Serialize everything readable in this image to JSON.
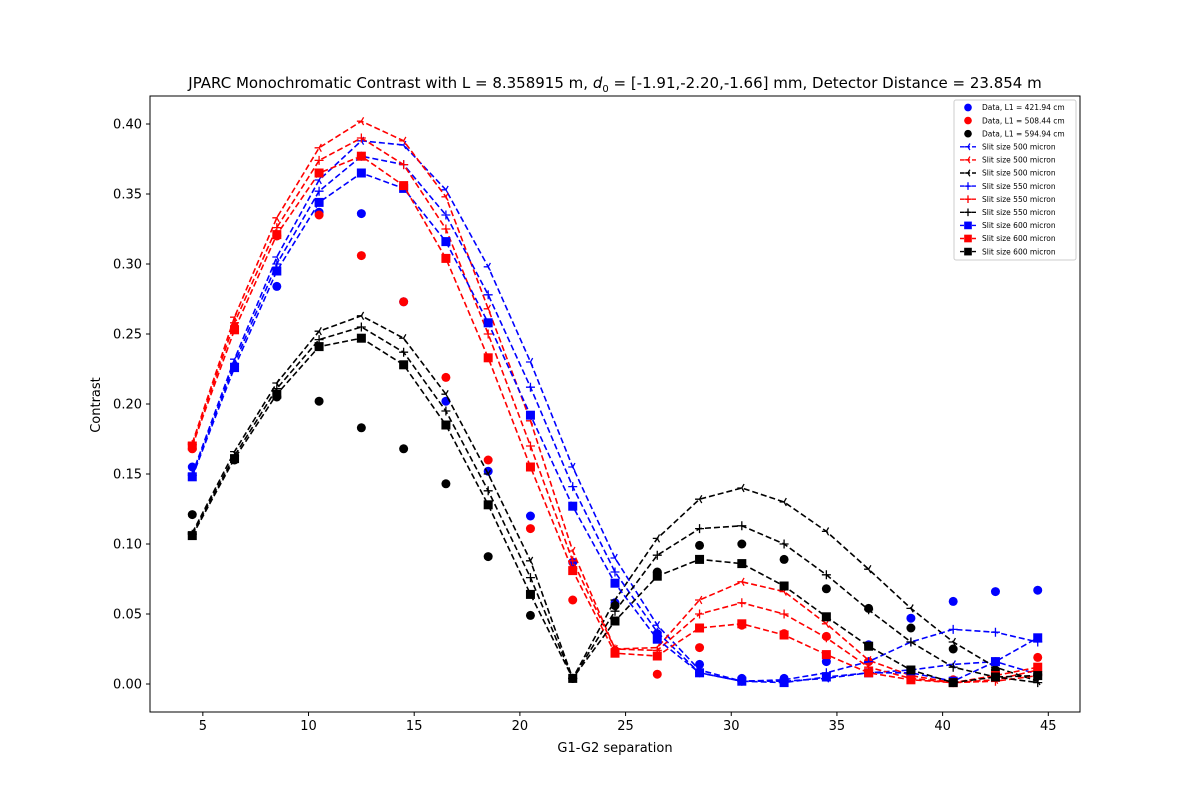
{
  "chart_data": {
    "type": "line",
    "title_prefix": "JPARC Monochromatic Contrast with L = 8.358915 m, ",
    "title_sym": "d",
    "title_sub": "0",
    "title_suffix": " = [-1.91,-2.20,-1.66] mm, Detector Distance = 23.854 m",
    "xlabel": "G1-G2 separation",
    "ylabel": "Contrast",
    "xlim": [
      2.5,
      46.5
    ],
    "ylim": [
      -0.02,
      0.42
    ],
    "xticks": [
      5,
      10,
      15,
      20,
      25,
      30,
      35,
      40,
      45
    ],
    "xtick_labels": [
      "5",
      "10",
      "15",
      "20",
      "25",
      "30",
      "35",
      "40",
      "45"
    ],
    "yticks": [
      0.0,
      0.05,
      0.1,
      0.15,
      0.2,
      0.25,
      0.3,
      0.35,
      0.4
    ],
    "ytick_labels": [
      "0.00",
      "0.05",
      "0.10",
      "0.15",
      "0.20",
      "0.25",
      "0.30",
      "0.35",
      "0.40"
    ],
    "grid": false,
    "legend_position": "top-right",
    "x": [
      4.5,
      6.5,
      8.5,
      10.5,
      12.5,
      14.5,
      16.5,
      18.5,
      20.5,
      22.5,
      24.5,
      26.5,
      28.5,
      30.5,
      32.5,
      34.5,
      36.5,
      38.5,
      40.5,
      42.5,
      44.5
    ],
    "series": [
      {
        "name": "Data, L1 = 421.94 cm",
        "color": "#0000ff",
        "marker": "circle",
        "linestyle": "none",
        "values": [
          0.155,
          0.227,
          0.284,
          0.337,
          0.336,
          0.273,
          0.202,
          0.152,
          0.12,
          0.087,
          0.058,
          0.036,
          0.014,
          0.004,
          0.004,
          0.016,
          0.028,
          0.047,
          0.059,
          0.066,
          0.067
        ]
      },
      {
        "name": "Data, L1 = 508.44 cm",
        "color": "#ff0000",
        "marker": "circle",
        "linestyle": "none",
        "values": [
          0.168,
          0.255,
          0.32,
          0.335,
          0.306,
          0.273,
          0.219,
          0.16,
          0.111,
          0.06,
          0.024,
          0.007,
          0.026,
          0.042,
          0.036,
          0.034,
          0.016,
          0.004,
          0.003,
          0.016,
          0.019
        ]
      },
      {
        "name": "Data, L1 = 594.94 cm",
        "color": "#000000",
        "marker": "circle",
        "linestyle": "none",
        "values": [
          0.121,
          0.16,
          0.205,
          0.202,
          0.183,
          0.168,
          0.143,
          0.091,
          0.049,
          0.004,
          0.056,
          0.08,
          0.099,
          0.1,
          0.089,
          0.068,
          0.054,
          0.04,
          0.025,
          0.01,
          0.007
        ]
      },
      {
        "name": "Slit size 500 micron",
        "color": "#0000ff",
        "marker": "tri_left",
        "linestyle": "dashed",
        "values": [
          0.15,
          0.232,
          0.305,
          0.36,
          0.388,
          0.385,
          0.353,
          0.298,
          0.23,
          0.155,
          0.09,
          0.042,
          0.01,
          0.002,
          0.002,
          0.004,
          0.008,
          0.01,
          0.014,
          0.016,
          0.007
        ]
      },
      {
        "name": "Slit size 500 micron",
        "color": "#ff0000",
        "marker": "tri_left",
        "linestyle": "dashed",
        "values": [
          0.172,
          0.262,
          0.333,
          0.383,
          0.402,
          0.388,
          0.348,
          0.268,
          0.188,
          0.095,
          0.025,
          0.026,
          0.06,
          0.073,
          0.066,
          0.043,
          0.017,
          0.006,
          0.001,
          0.003,
          0.01
        ]
      },
      {
        "name": "Slit size 500 micron",
        "color": "#000000",
        "marker": "tri_left",
        "linestyle": "dashed",
        "values": [
          0.108,
          0.166,
          0.215,
          0.252,
          0.263,
          0.247,
          0.207,
          0.15,
          0.088,
          0.004,
          0.06,
          0.104,
          0.132,
          0.14,
          0.13,
          0.109,
          0.082,
          0.054,
          0.03,
          0.012,
          0.002
        ]
      },
      {
        "name": "Slit size 550 micron",
        "color": "#0000ff",
        "marker": "plus",
        "linestyle": "dashed",
        "values": [
          0.149,
          0.229,
          0.3,
          0.352,
          0.377,
          0.371,
          0.335,
          0.278,
          0.212,
          0.141,
          0.08,
          0.037,
          0.008,
          0.002,
          0.003,
          0.008,
          0.016,
          0.03,
          0.039,
          0.037,
          0.03
        ]
      },
      {
        "name": "Slit size 550 micron",
        "color": "#ff0000",
        "marker": "plus",
        "linestyle": "dashed",
        "values": [
          0.171,
          0.258,
          0.326,
          0.374,
          0.39,
          0.371,
          0.325,
          0.25,
          0.17,
          0.088,
          0.025,
          0.024,
          0.05,
          0.058,
          0.05,
          0.033,
          0.012,
          0.004,
          0.001,
          0.002,
          0.006
        ]
      },
      {
        "name": "Slit size 550 micron",
        "color": "#000000",
        "marker": "plus",
        "linestyle": "dashed",
        "values": [
          0.107,
          0.163,
          0.211,
          0.246,
          0.255,
          0.237,
          0.195,
          0.138,
          0.076,
          0.004,
          0.052,
          0.092,
          0.111,
          0.113,
          0.1,
          0.078,
          0.053,
          0.03,
          0.012,
          0.005,
          0.001
        ]
      },
      {
        "name": "Slit size 600 micron",
        "color": "#0000ff",
        "marker": "square",
        "linestyle": "dashed",
        "values": [
          0.148,
          0.226,
          0.295,
          0.344,
          0.365,
          0.354,
          0.316,
          0.258,
          0.192,
          0.127,
          0.072,
          0.032,
          0.008,
          0.002,
          0.001,
          0.005,
          0.008,
          0.008,
          0.002,
          0.016,
          0.033
        ]
      },
      {
        "name": "Slit size 600 micron",
        "color": "#ff0000",
        "marker": "square",
        "linestyle": "dashed",
        "values": [
          0.17,
          0.253,
          0.321,
          0.365,
          0.377,
          0.356,
          0.304,
          0.233,
          0.155,
          0.081,
          0.022,
          0.02,
          0.04,
          0.043,
          0.035,
          0.021,
          0.008,
          0.003,
          0.001,
          0.006,
          0.012
        ]
      },
      {
        "name": "Slit size 600 micron",
        "color": "#000000",
        "marker": "square",
        "linestyle": "dashed",
        "values": [
          0.106,
          0.161,
          0.207,
          0.241,
          0.247,
          0.228,
          0.185,
          0.128,
          0.064,
          0.004,
          0.045,
          0.077,
          0.089,
          0.086,
          0.07,
          0.048,
          0.027,
          0.01,
          0.001,
          0.005,
          0.006
        ]
      }
    ]
  }
}
